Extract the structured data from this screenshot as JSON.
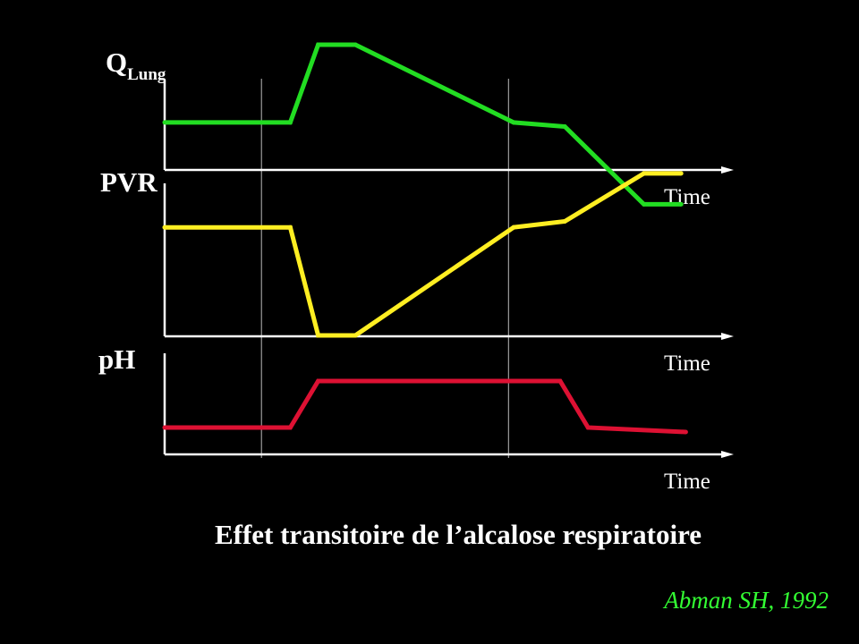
{
  "colors": {
    "background": "#000000",
    "text": "#ffffff",
    "axis": "#ffffff",
    "guide": "#bbbbbb",
    "source": "#33ff33"
  },
  "caption": "Effet transitoire de l’alcalose respiratoire",
  "source": "Abman SH, 1992",
  "chart_data": [
    {
      "type": "line",
      "label_main": "Q",
      "label_sub": "Lung",
      "xlabel": "Time",
      "ylabel": "",
      "x_ticks": false,
      "y_ticks": false,
      "color": "#22dd22",
      "x": [
        0,
        27,
        33,
        41,
        75,
        86,
        103,
        111
      ],
      "y": [
        0.25,
        0.25,
        0.82,
        0.82,
        0.25,
        0.22,
        -0.35,
        -0.35
      ]
    },
    {
      "type": "line",
      "label_main": "PVR",
      "label_sub": "",
      "xlabel": "Time",
      "ylabel": "",
      "x_ticks": false,
      "y_ticks": false,
      "color": "#ffee22",
      "x": [
        0,
        27,
        33,
        41,
        75,
        86,
        103,
        111
      ],
      "y": [
        0.55,
        0.55,
        -0.35,
        -0.35,
        0.55,
        0.6,
        1.0,
        1.0
      ]
    },
    {
      "type": "line",
      "label_main": "pH",
      "label_sub": "",
      "xlabel": "Time",
      "ylabel": "",
      "x_ticks": false,
      "y_ticks": false,
      "color": "#dd1133",
      "x": [
        0,
        27,
        33,
        85,
        91,
        112
      ],
      "y": [
        0.3,
        0.3,
        0.82,
        0.82,
        0.3,
        0.25
      ]
    }
  ]
}
